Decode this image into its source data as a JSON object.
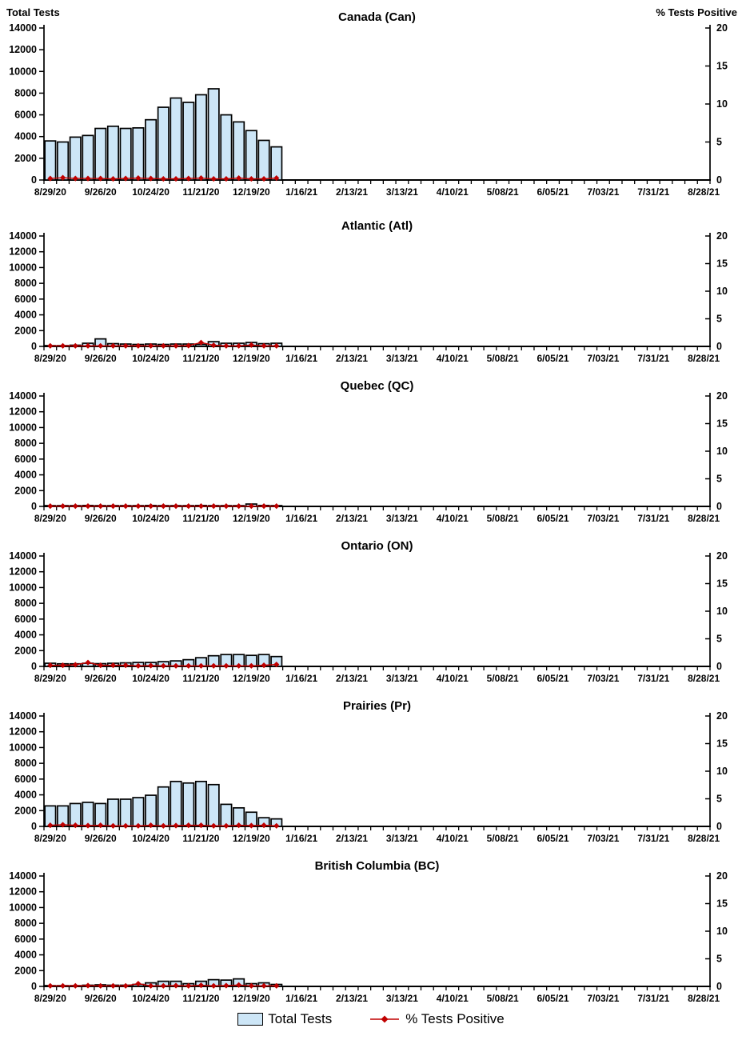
{
  "page": {
    "left_axis_title": "Total Tests",
    "right_axis_title": "% Tests Positive"
  },
  "colors": {
    "bar_fill": "#CDE6F7",
    "bar_stroke": "#000000",
    "line": "#C00000",
    "axis": "#000000",
    "text": "#000000"
  },
  "legend": [
    {
      "label": "Total Tests",
      "type": "bar"
    },
    {
      "label": "% Tests Positive",
      "type": "line"
    }
  ],
  "axes": {
    "y_left": {
      "title": "Total Tests",
      "min": 0,
      "max": 14000,
      "tick_step": 2000,
      "tick_labels": [
        "0",
        "2000",
        "4000",
        "6000",
        "8000",
        "10000",
        "12000",
        "14000"
      ]
    },
    "y_right": {
      "title": "% Tests Positive",
      "min": 0,
      "max": 20,
      "tick_step": 5,
      "tick_labels": [
        "0",
        "5",
        "10",
        "15",
        "20"
      ]
    },
    "x": {
      "first_date": "8/29/20",
      "last_date": "8/28/21",
      "weeks_total": 53,
      "label_every_n_weeks": 4,
      "tick_labels": [
        "8/29/20",
        "9/26/20",
        "10/24/20",
        "11/21/20",
        "12/19/20",
        "1/16/21",
        "2/13/21",
        "3/13/21",
        "4/10/21",
        "5/08/21",
        "6/05/21",
        "7/03/21",
        "7/31/21",
        "8/28/21"
      ]
    }
  },
  "chart_data": [
    {
      "type": "bar+line-combo",
      "title": "Canada (Can)",
      "categories": [
        "8/29/20",
        "9/05/20",
        "9/12/20",
        "9/19/20",
        "9/26/20",
        "10/03/20",
        "10/10/20",
        "10/17/20",
        "10/24/20",
        "10/31/20",
        "11/07/20",
        "11/14/20",
        "11/21/20",
        "11/28/20",
        "12/05/20",
        "12/12/20",
        "12/19/20",
        "12/26/20",
        "1/02/21"
      ],
      "series": [
        {
          "name": "Total Tests",
          "axis": "left",
          "values": [
            3600,
            3500,
            3950,
            4100,
            4750,
            4950,
            4750,
            4800,
            5550,
            6700,
            7550,
            7150,
            7850,
            8400,
            6000,
            5350,
            4550,
            3650,
            3050
          ]
        },
        {
          "name": "% Tests Positive",
          "axis": "right",
          "values": [
            0.2,
            0.3,
            0.2,
            0.2,
            0.2,
            0.15,
            0.2,
            0.25,
            0.2,
            0.15,
            0.15,
            0.2,
            0.25,
            0.15,
            0.15,
            0.25,
            0.15,
            0.15,
            0.25
          ]
        }
      ]
    },
    {
      "type": "bar+line-combo",
      "title": "Atlantic (Atl)",
      "categories": [
        "8/29/20",
        "9/05/20",
        "9/12/20",
        "9/19/20",
        "9/26/20",
        "10/03/20",
        "10/10/20",
        "10/17/20",
        "10/24/20",
        "10/31/20",
        "11/07/20",
        "11/14/20",
        "11/21/20",
        "11/28/20",
        "12/05/20",
        "12/12/20",
        "12/19/20",
        "12/26/20",
        "1/02/21"
      ],
      "series": [
        {
          "name": "Total Tests",
          "axis": "left",
          "values": [
            100,
            100,
            150,
            400,
            950,
            350,
            300,
            250,
            300,
            250,
            300,
            300,
            250,
            600,
            400,
            400,
            500,
            350,
            400
          ]
        },
        {
          "name": "% Tests Positive",
          "axis": "right",
          "values": [
            0.1,
            0.1,
            0.1,
            0.1,
            0.1,
            0.1,
            0.1,
            0.1,
            0.1,
            0.1,
            0.1,
            0.15,
            0.7,
            0.2,
            0.1,
            0.1,
            0.25,
            0.1,
            0.1
          ]
        }
      ]
    },
    {
      "type": "bar+line-combo",
      "title": "Quebec (QC)",
      "categories": [
        "8/29/20",
        "9/05/20",
        "9/12/20",
        "9/19/20",
        "9/26/20",
        "10/03/20",
        "10/10/20",
        "10/17/20",
        "10/24/20",
        "10/31/20",
        "11/07/20",
        "11/14/20",
        "11/21/20",
        "11/28/20",
        "12/05/20",
        "12/12/20",
        "12/19/20",
        "12/26/20",
        "1/02/21"
      ],
      "series": [
        {
          "name": "Total Tests",
          "axis": "left",
          "values": [
            100,
            100,
            100,
            120,
            100,
            100,
            100,
            100,
            120,
            100,
            100,
            100,
            120,
            100,
            100,
            100,
            300,
            120,
            100
          ]
        },
        {
          "name": "% Tests Positive",
          "axis": "right",
          "values": [
            0.05,
            0.05,
            0.05,
            0.05,
            0.05,
            0.05,
            0.05,
            0.05,
            0.05,
            0.05,
            0.05,
            0.05,
            0.05,
            0.05,
            0.05,
            0.05,
            0.05,
            0.05,
            0.05
          ]
        }
      ]
    },
    {
      "type": "bar+line-combo",
      "title": "Ontario (ON)",
      "categories": [
        "8/29/20",
        "9/05/20",
        "9/12/20",
        "9/19/20",
        "9/26/20",
        "10/03/20",
        "10/10/20",
        "10/17/20",
        "10/24/20",
        "10/31/20",
        "11/07/20",
        "11/14/20",
        "11/21/20",
        "11/28/20",
        "12/05/20",
        "12/12/20",
        "12/19/20",
        "12/26/20",
        "1/02/21"
      ],
      "series": [
        {
          "name": "Total Tests",
          "axis": "left",
          "values": [
            400,
            330,
            330,
            400,
            350,
            400,
            450,
            500,
            500,
            600,
            700,
            850,
            1100,
            1350,
            1500,
            1500,
            1400,
            1500,
            1250
          ]
        },
        {
          "name": "% Tests Positive",
          "axis": "right",
          "values": [
            0.2,
            0.2,
            0.3,
            0.7,
            0.2,
            0.2,
            0.2,
            0.1,
            0.15,
            0.1,
            0.1,
            0.1,
            0.1,
            0.1,
            0.1,
            0.1,
            0.1,
            0.2,
            0.35
          ]
        }
      ]
    },
    {
      "type": "bar+line-combo",
      "title": "Prairies (Pr)",
      "categories": [
        "8/29/20",
        "9/05/20",
        "9/12/20",
        "9/19/20",
        "9/26/20",
        "10/03/20",
        "10/10/20",
        "10/17/20",
        "10/24/20",
        "10/31/20",
        "11/07/20",
        "11/14/20",
        "11/21/20",
        "11/28/20",
        "12/05/20",
        "12/12/20",
        "12/19/20",
        "12/26/20",
        "1/02/21"
      ],
      "series": [
        {
          "name": "Total Tests",
          "axis": "left",
          "values": [
            2600,
            2600,
            2900,
            3050,
            2900,
            3450,
            3450,
            3650,
            3950,
            5000,
            5700,
            5500,
            5700,
            5300,
            2800,
            2350,
            1800,
            1100,
            950
          ]
        },
        {
          "name": "% Tests Positive",
          "axis": "right",
          "values": [
            0.2,
            0.3,
            0.2,
            0.15,
            0.2,
            0.1,
            0.1,
            0.1,
            0.2,
            0.1,
            0.15,
            0.2,
            0.2,
            0.1,
            0.1,
            0.2,
            0.15,
            0.2,
            0.1
          ]
        }
      ]
    },
    {
      "type": "bar+line-combo",
      "title": "British Columbia (BC)",
      "categories": [
        "8/29/20",
        "9/05/20",
        "9/12/20",
        "9/19/20",
        "9/26/20",
        "10/03/20",
        "10/10/20",
        "10/17/20",
        "10/24/20",
        "10/31/20",
        "11/07/20",
        "11/14/20",
        "11/21/20",
        "11/28/20",
        "12/05/20",
        "12/12/20",
        "12/19/20",
        "12/26/20",
        "1/02/21"
      ],
      "series": [
        {
          "name": "Total Tests",
          "axis": "left",
          "values": [
            100,
            100,
            100,
            150,
            200,
            150,
            150,
            250,
            450,
            650,
            650,
            350,
            650,
            850,
            800,
            950,
            350,
            450,
            250
          ]
        },
        {
          "name": "% Tests Positive",
          "axis": "right",
          "values": [
            0.1,
            0.1,
            0.1,
            0.15,
            0.1,
            0.1,
            0.1,
            0.5,
            0.1,
            0.1,
            0.15,
            0.1,
            0.2,
            0.1,
            0.15,
            0.25,
            0.1,
            0.1,
            0.1
          ]
        }
      ]
    }
  ]
}
